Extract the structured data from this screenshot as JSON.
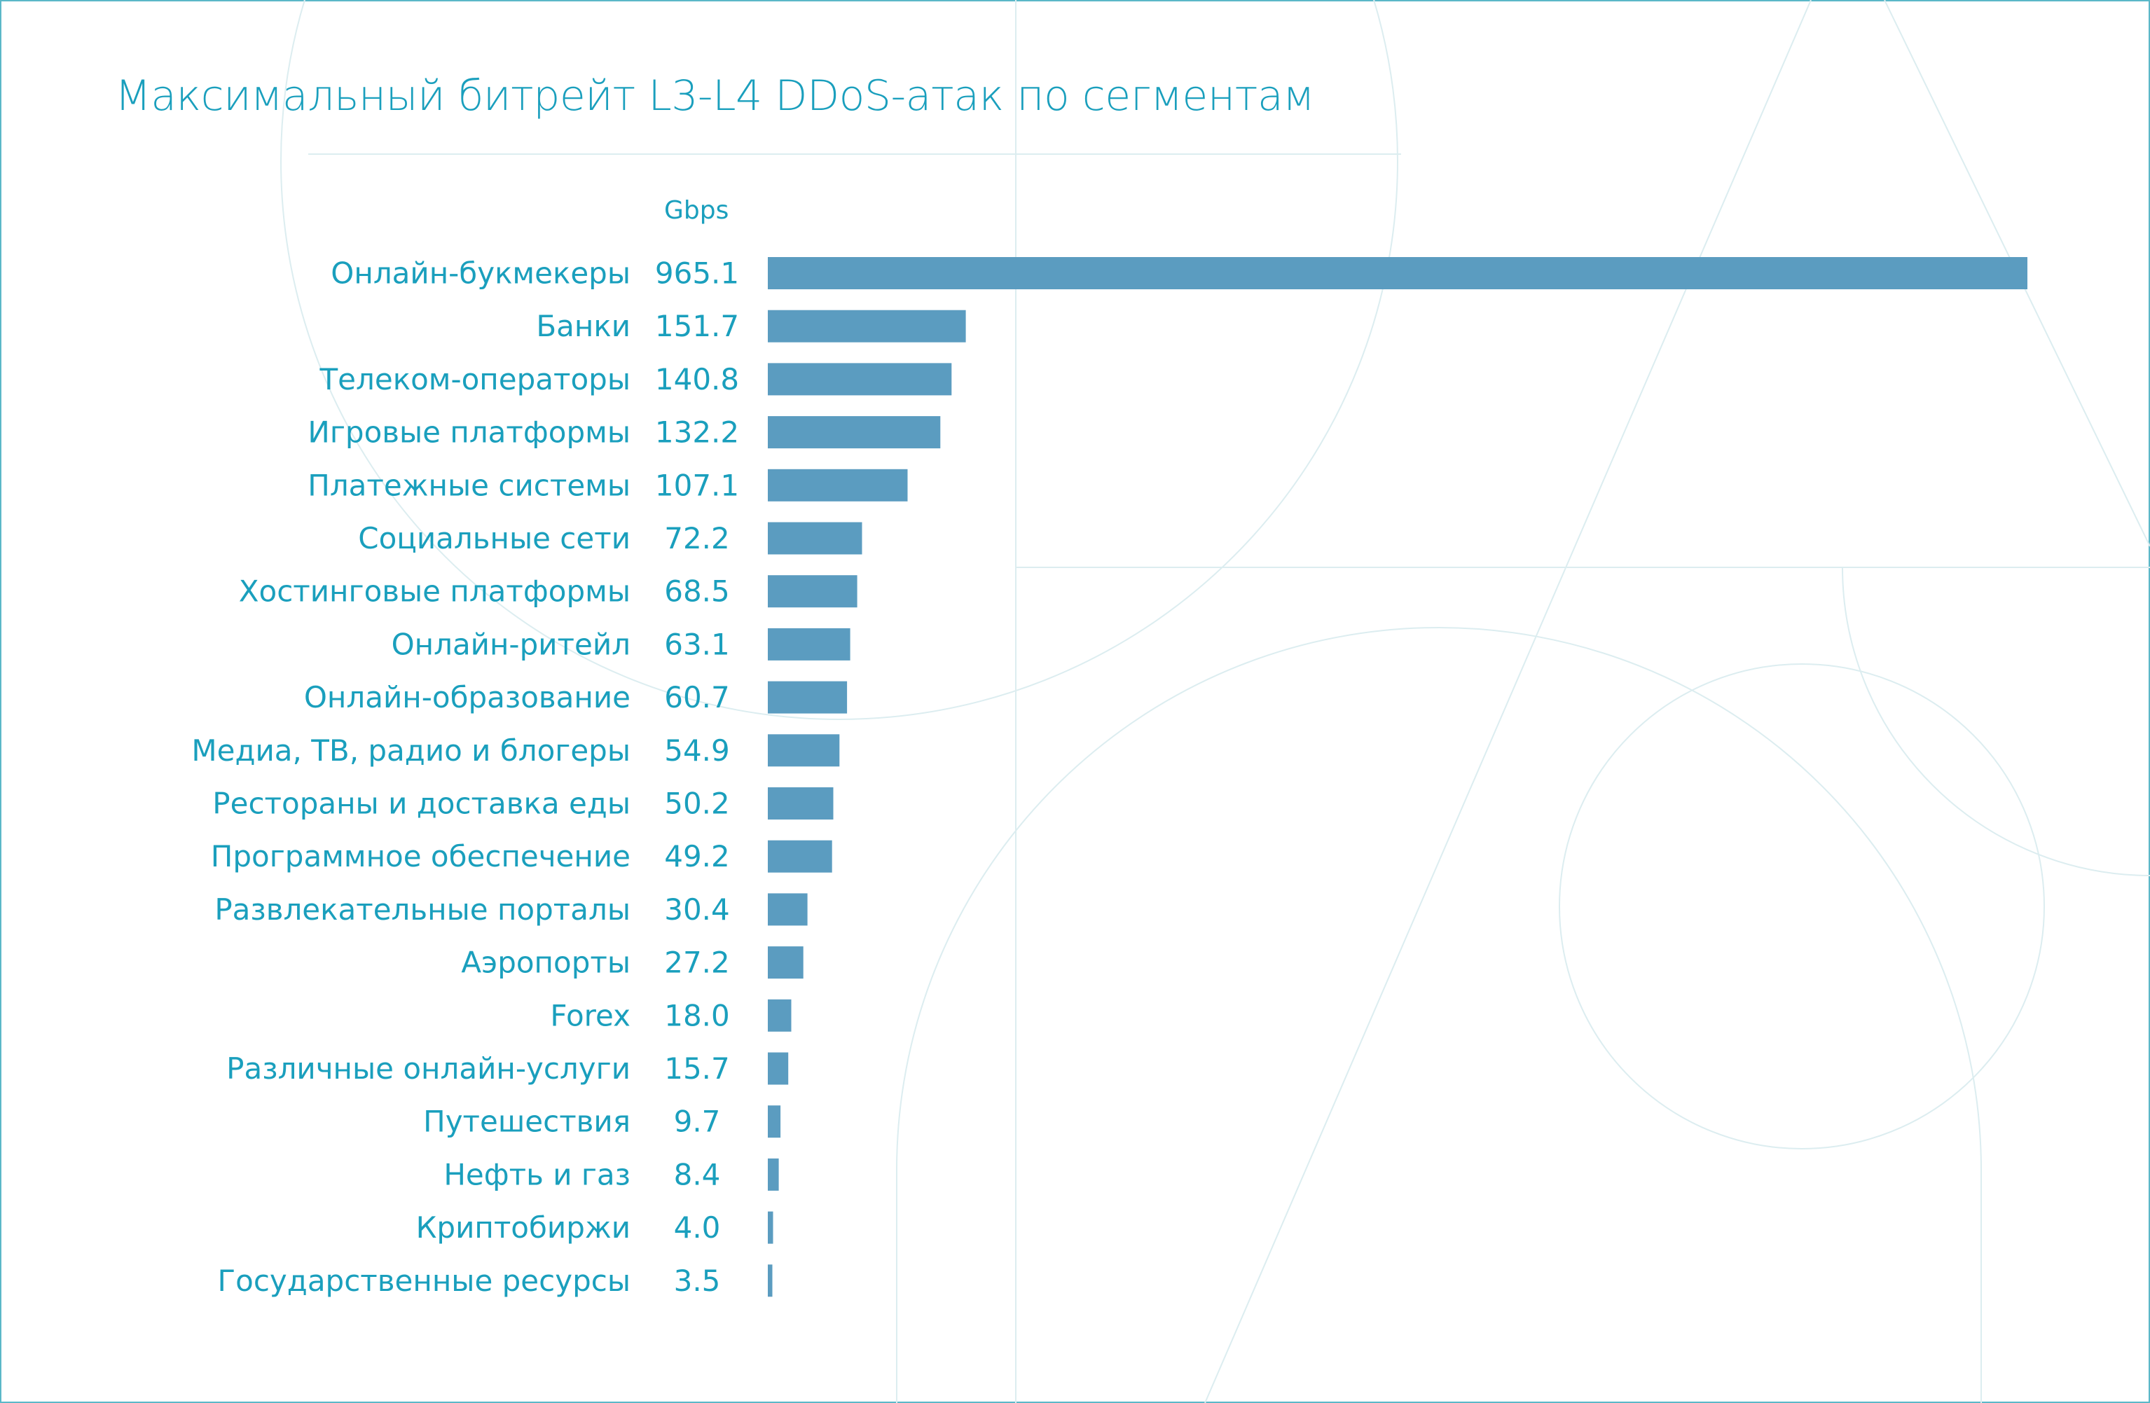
{
  "chart_data": {
    "type": "bar",
    "orientation": "horizontal",
    "title": "Максимальный битрейт L3-L4 DDoS-атак по сегментам",
    "unit_label": "Gbps",
    "xlim": [
      0,
      965.1
    ],
    "grid": false,
    "legend": "none",
    "colors": {
      "bar": "#5b9cc0",
      "text": "#1a9fbd",
      "border": "#5bb8c8",
      "decor": "#d6ecef"
    },
    "categories": [
      "Онлайн-букмекеры",
      "Банки",
      "Телеком-операторы",
      "Игровые платформы",
      "Платежные системы",
      "Социальные сети",
      "Хостинговые платформы",
      "Онлайн-ритейл",
      "Онлайн-образование",
      "Медиа, ТВ, радио и блогеры",
      "Рестораны и доставка еды",
      "Программное обеспечение",
      "Развлекательные порталы",
      "Аэропорты",
      "Forex",
      "Различные онлайн-услуги",
      "Путешествия",
      "Нефть и газ",
      "Криптобиржи",
      "Государственные ресурсы"
    ],
    "values": [
      965.1,
      151.7,
      140.8,
      132.2,
      107.1,
      72.2,
      68.5,
      63.1,
      60.7,
      54.9,
      50.2,
      49.2,
      30.4,
      27.2,
      18.0,
      15.7,
      9.7,
      8.4,
      4.0,
      3.5
    ],
    "value_labels": [
      "965.1",
      "151.7",
      "140.8",
      "132.2",
      "107.1",
      "72.2",
      "68.5",
      "63.1",
      "60.7",
      "54.9",
      "50.2",
      "49.2",
      "30.4",
      "27.2",
      "18.0",
      "15.7",
      "9.7",
      "8.4",
      "4.0",
      "3.5"
    ]
  }
}
